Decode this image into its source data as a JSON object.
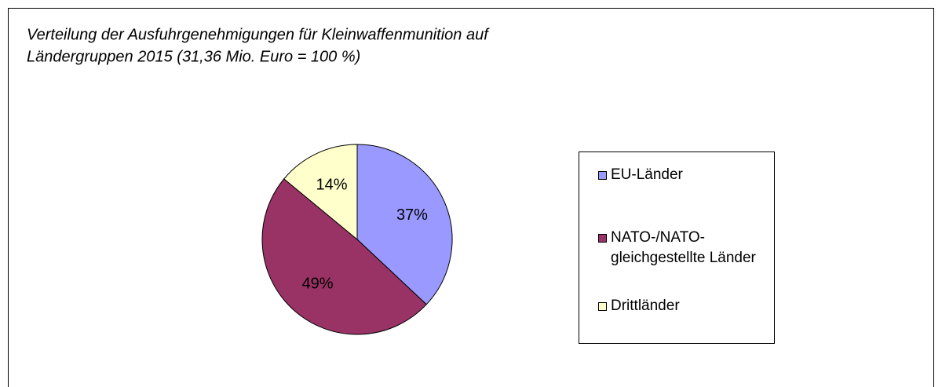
{
  "chart_data": {
    "type": "pie",
    "title": [
      "Verteilung der Ausfuhrgenehmigungen für Kleinwaffenmunition auf",
      "Ländergruppen 2015 (31,36 Mio. Euro = 100 %)"
    ],
    "categories": [
      "EU-Länder",
      "NATO-/NATO-gleichgestellte Länder",
      "Drittländer"
    ],
    "values": [
      37,
      49,
      14
    ],
    "value_labels": [
      "37%",
      "49%",
      "14%"
    ],
    "colors": [
      "#9999ff",
      "#993366",
      "#ffffcc"
    ],
    "legend": "right"
  }
}
